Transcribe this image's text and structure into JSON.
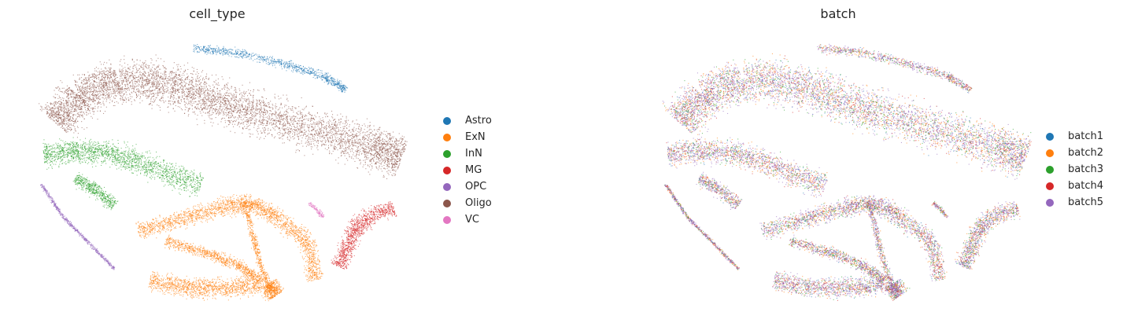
{
  "chart_data": [
    {
      "type": "scatter",
      "title": "cell_type",
      "xlabel": "",
      "ylabel": "",
      "grid": false,
      "legend_position": "right",
      "series": [
        {
          "name": "Astro",
          "color": "#1f77b4"
        },
        {
          "name": "ExN",
          "color": "#ff7f0e"
        },
        {
          "name": "InN",
          "color": "#2ca02c"
        },
        {
          "name": "MG",
          "color": "#d62728"
        },
        {
          "name": "OPC",
          "color": "#9467bd"
        },
        {
          "name": "Oligo",
          "color": "#8c564b"
        },
        {
          "name": "VC",
          "color": "#e377c2"
        }
      ]
    },
    {
      "type": "scatter",
      "title": "batch",
      "xlabel": "",
      "ylabel": "",
      "grid": false,
      "legend_position": "right",
      "series": [
        {
          "name": "batch1",
          "color": "#1f77b4"
        },
        {
          "name": "batch2",
          "color": "#ff7f0e"
        },
        {
          "name": "batch3",
          "color": "#2ca02c"
        },
        {
          "name": "batch4",
          "color": "#d62728"
        },
        {
          "name": "batch5",
          "color": "#9467bd"
        }
      ]
    }
  ]
}
